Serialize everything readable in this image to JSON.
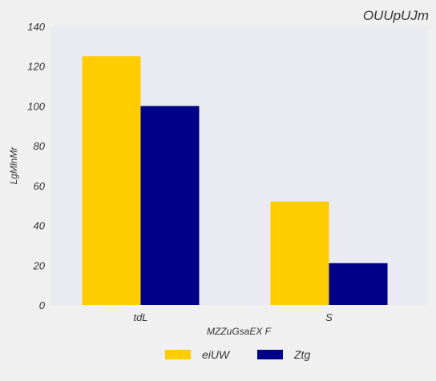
{
  "chart_data": {
    "type": "bar",
    "title": "OUUpUJm",
    "categories": [
      "tdL",
      "S"
    ],
    "series": [
      {
        "name": "eiUW",
        "values": [
          125,
          52
        ],
        "color": "#ffcc00"
      },
      {
        "name": "Ztg",
        "values": [
          100,
          21
        ],
        "color": "#000088"
      }
    ],
    "xlabel": "MZZuGsaEX F",
    "ylabel": "LgMlnMr",
    "ylim": [
      0,
      140
    ],
    "yticks": [
      0,
      20,
      40,
      60,
      80,
      100,
      120,
      140
    ],
    "grid": false,
    "legend_position": "bottom-center",
    "plot_background": "#eaeaf2",
    "page_background": "#f0f0f0"
  }
}
